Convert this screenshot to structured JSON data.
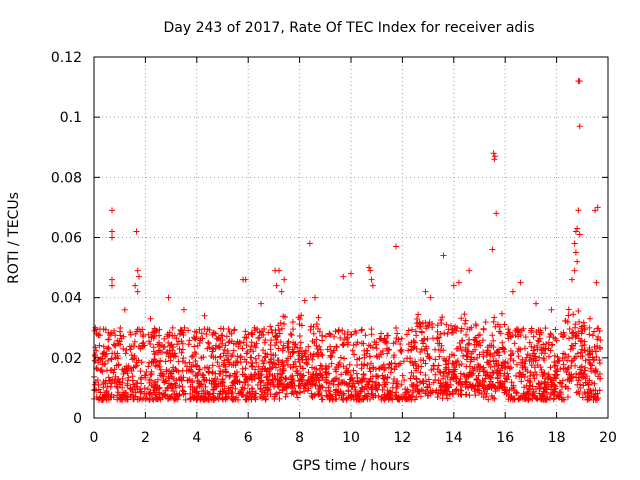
{
  "chart_data": {
    "type": "scatter",
    "title": "Day 243 of 2017, Rate Of TEC Index for receiver adis",
    "xlabel": "GPS time / hours",
    "ylabel": "ROTI / TECUs",
    "xlim": [
      0,
      20
    ],
    "ylim": [
      0,
      0.12
    ],
    "xticks": [
      0,
      2,
      4,
      6,
      8,
      10,
      12,
      14,
      16,
      18,
      20
    ],
    "xtick_labels": [
      "0",
      "2",
      "4",
      "6",
      "8",
      "10",
      "12",
      "14",
      "16",
      "18",
      "20"
    ],
    "yticks": [
      0,
      0.02,
      0.04,
      0.06,
      0.08,
      0.1,
      0.12
    ],
    "ytick_labels": [
      "0",
      "0.02",
      "0.04",
      "0.06",
      "0.08",
      "0.1",
      "0.12"
    ],
    "grid": true,
    "marker": "+",
    "color": "#ff0000",
    "data_span_hours": [
      0.0,
      19.7
    ],
    "gap_hours": [
      8.9,
      9.0
    ],
    "baseline_band": [
      0.006,
      0.03
    ],
    "series": [
      {
        "name": "ROTI",
        "points": [
          [
            0.7,
            0.069
          ],
          [
            0.7,
            0.062
          ],
          [
            0.7,
            0.06
          ],
          [
            0.7,
            0.046
          ],
          [
            0.7,
            0.044
          ],
          [
            1.65,
            0.062
          ],
          [
            1.7,
            0.049
          ],
          [
            1.75,
            0.047
          ],
          [
            1.6,
            0.044
          ],
          [
            1.7,
            0.042
          ],
          [
            2.9,
            0.04
          ],
          [
            3.5,
            0.036
          ],
          [
            5.8,
            0.046
          ],
          [
            5.9,
            0.046
          ],
          [
            7.05,
            0.049
          ],
          [
            7.2,
            0.049
          ],
          [
            7.4,
            0.046
          ],
          [
            7.1,
            0.044
          ],
          [
            7.3,
            0.042
          ],
          [
            8.4,
            0.058
          ],
          [
            8.6,
            0.04
          ],
          [
            9.7,
            0.047
          ],
          [
            10.0,
            0.048
          ],
          [
            10.7,
            0.05
          ],
          [
            10.75,
            0.049
          ],
          [
            10.8,
            0.046
          ],
          [
            10.85,
            0.044
          ],
          [
            11.75,
            0.057
          ],
          [
            13.6,
            0.054
          ],
          [
            14.6,
            0.049
          ],
          [
            14.0,
            0.044
          ],
          [
            15.55,
            0.088
          ],
          [
            15.6,
            0.087
          ],
          [
            15.58,
            0.086
          ],
          [
            15.65,
            0.068
          ],
          [
            15.5,
            0.056
          ],
          [
            16.6,
            0.045
          ],
          [
            16.3,
            0.042
          ],
          [
            18.85,
            0.112
          ],
          [
            18.9,
            0.112
          ],
          [
            18.9,
            0.097
          ],
          [
            18.85,
            0.069
          ],
          [
            18.8,
            0.063
          ],
          [
            18.75,
            0.062
          ],
          [
            18.9,
            0.061
          ],
          [
            18.7,
            0.058
          ],
          [
            18.75,
            0.055
          ],
          [
            18.8,
            0.052
          ],
          [
            18.7,
            0.049
          ],
          [
            18.6,
            0.046
          ],
          [
            19.6,
            0.07
          ],
          [
            19.5,
            0.069
          ],
          [
            19.55,
            0.045
          ],
          [
            0.05,
            0.03
          ],
          [
            0.1,
            0.028
          ],
          [
            1.2,
            0.036
          ],
          [
            2.2,
            0.033
          ],
          [
            4.3,
            0.034
          ],
          [
            6.5,
            0.038
          ],
          [
            8.2,
            0.039
          ],
          [
            12.9,
            0.042
          ],
          [
            13.1,
            0.04
          ],
          [
            14.2,
            0.045
          ],
          [
            17.2,
            0.038
          ],
          [
            17.8,
            0.036
          ],
          [
            19.3,
            0.033
          ]
        ]
      }
    ]
  }
}
